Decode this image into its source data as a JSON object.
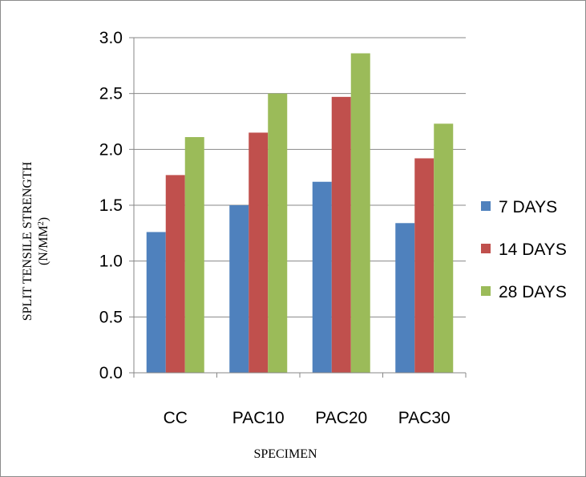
{
  "chart_data": {
    "type": "bar",
    "title": "",
    "xlabel": "SPECIMEN",
    "ylabel": "SPLIT TENSILE STRENGTH",
    "ylabel_unit": "(N/MM",
    "ylabel_unit_sup": "2",
    "ylabel_unit_end": ")",
    "categories": [
      "CC",
      "PAC10",
      "PAC20",
      "PAC30"
    ],
    "ylim": [
      0,
      3.0
    ],
    "yticks": [
      "0.0",
      "0.5",
      "1.0",
      "1.5",
      "2.0",
      "2.5",
      "3.0"
    ],
    "grid": true,
    "legend_position": "right",
    "series": [
      {
        "name": "7 DAYS",
        "color": "#4f81bd",
        "values": [
          1.26,
          1.5,
          1.71,
          1.34
        ]
      },
      {
        "name": "14 DAYS",
        "color": "#c0504d",
        "values": [
          1.77,
          2.15,
          2.47,
          1.92
        ]
      },
      {
        "name": "28 DAYS",
        "color": "#9bbb59",
        "values": [
          2.11,
          2.5,
          2.86,
          2.23
        ]
      }
    ]
  }
}
